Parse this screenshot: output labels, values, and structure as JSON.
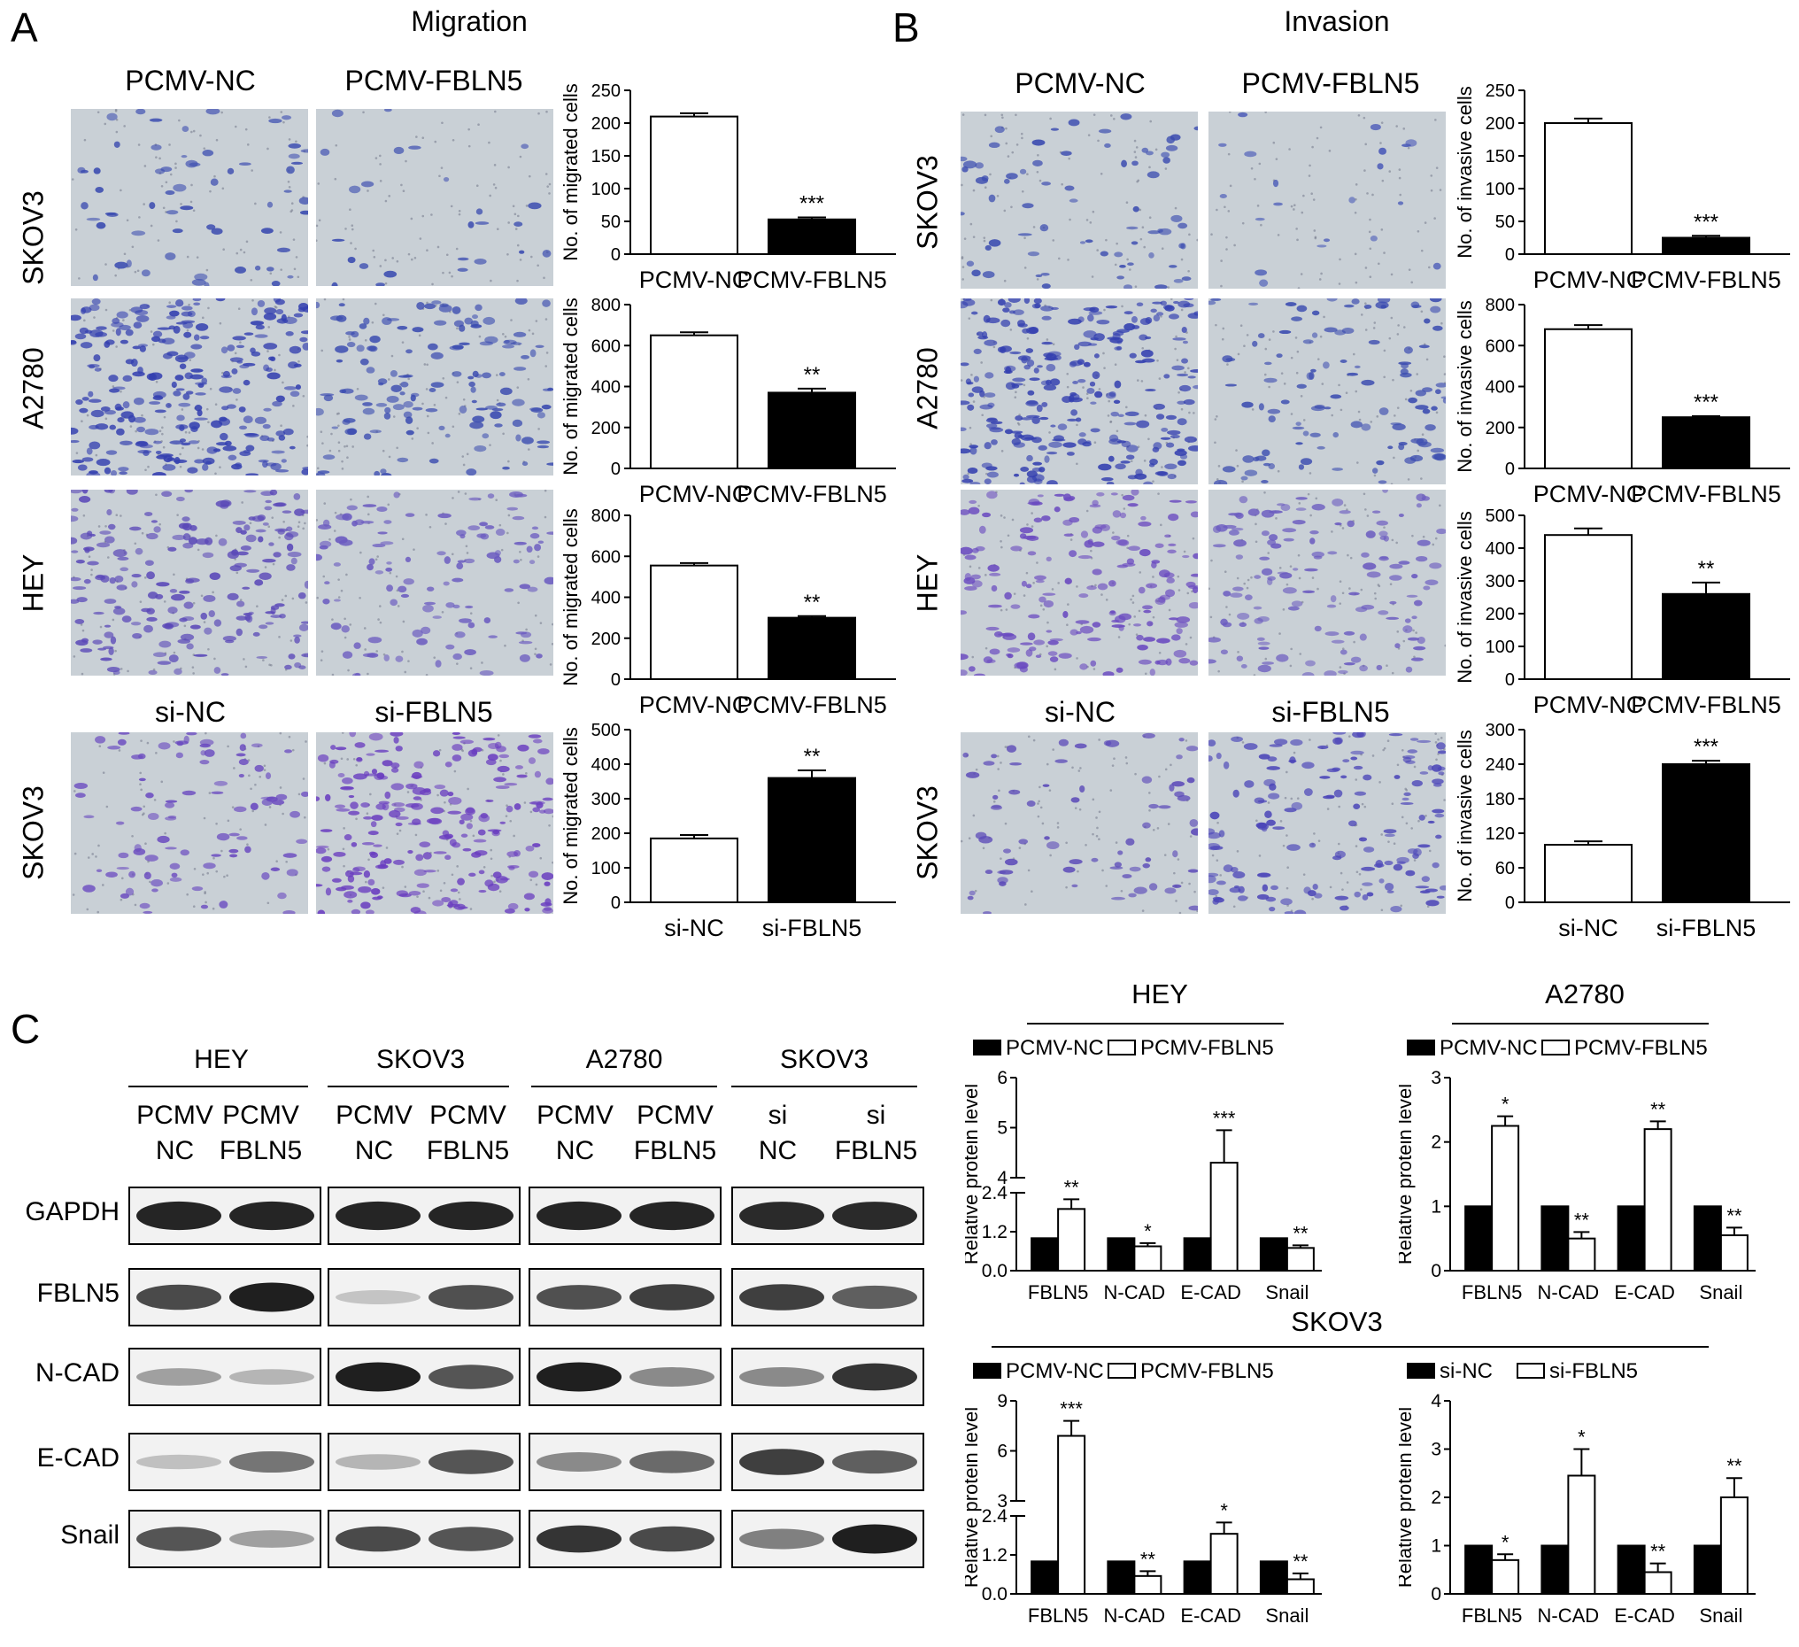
{
  "labels": {
    "panel_a": "A",
    "panel_b": "B",
    "panel_c": "C",
    "migration": "Migration",
    "invasion": "Invasion",
    "pcmv_nc": "PCMV-NC",
    "pcmv_fbln5": "PCMV-FBLN5",
    "si_nc": "si-NC",
    "si_fbln5": "si-FBLN5",
    "skov3": "SKOV3",
    "a2780": "A2780",
    "hey": "HEY"
  },
  "blot": {
    "groups": [
      "HEY",
      "SKOV3",
      "A2780",
      "SKOV3"
    ],
    "lanes": [
      {
        "top": "PCMV",
        "bottom": "NC"
      },
      {
        "top": "PCMV",
        "bottom": "FBLN5"
      },
      {
        "top": "PCMV",
        "bottom": "NC"
      },
      {
        "top": "PCMV",
        "bottom": "FBLN5"
      },
      {
        "top": "PCMV",
        "bottom": "NC"
      },
      {
        "top": "PCMV",
        "bottom": "FBLN5"
      },
      {
        "top": "si",
        "bottom": "NC"
      },
      {
        "top": "si",
        "bottom": "FBLN5"
      }
    ],
    "proteins": [
      "GAPDH",
      "FBLN5",
      "N-CAD",
      "E-CAD",
      "Snail"
    ],
    "intensity": [
      [
        0.92,
        0.92,
        0.92,
        0.92,
        0.92,
        0.92,
        0.9,
        0.9
      ],
      [
        0.75,
        0.95,
        0.18,
        0.72,
        0.72,
        0.8,
        0.8,
        0.65
      ],
      [
        0.35,
        0.25,
        0.95,
        0.7,
        0.95,
        0.45,
        0.45,
        0.85
      ],
      [
        0.2,
        0.55,
        0.25,
        0.7,
        0.45,
        0.6,
        0.8,
        0.65
      ],
      [
        0.7,
        0.35,
        0.75,
        0.7,
        0.85,
        0.75,
        0.5,
        0.95
      ]
    ]
  },
  "chart_data": [
    {
      "type": "bar",
      "id": "mig_skov3",
      "categories": [
        "PCMV-NC",
        "PCMV-FBLN5"
      ],
      "values": [
        210,
        53
      ],
      "errors": [
        5,
        3
      ],
      "fills": [
        "#ffffff",
        "#000000"
      ],
      "ylabel": "No. of migrated cells",
      "ylim": [
        0,
        250
      ],
      "yticks": [
        "0",
        "50",
        "100",
        "150",
        "200",
        "250"
      ],
      "signif": [
        "",
        "***"
      ]
    },
    {
      "type": "bar",
      "id": "mig_a2780",
      "categories": [
        "PCMV-NC",
        "PCMV-FBLN5"
      ],
      "values": [
        650,
        370
      ],
      "errors": [
        15,
        20
      ],
      "fills": [
        "#ffffff",
        "#000000"
      ],
      "ylabel": "No. of migrated cells",
      "ylim": [
        0,
        800
      ],
      "yticks": [
        "0",
        "200",
        "400",
        "600",
        "800"
      ],
      "signif": [
        "",
        "**"
      ]
    },
    {
      "type": "bar",
      "id": "mig_hey",
      "categories": [
        "PCMV-NC",
        "PCMV-FBLN5"
      ],
      "values": [
        555,
        300
      ],
      "errors": [
        12,
        8
      ],
      "fills": [
        "#ffffff",
        "#000000"
      ],
      "ylabel": "No. of migrated cells",
      "ylim": [
        0,
        800
      ],
      "yticks": [
        "0",
        "200",
        "400",
        "600",
        "800"
      ],
      "signif": [
        "",
        "**"
      ]
    },
    {
      "type": "bar",
      "id": "mig_skov3_si",
      "categories": [
        "si-NC",
        "si-FBLN5"
      ],
      "values": [
        185,
        360
      ],
      "errors": [
        10,
        22
      ],
      "fills": [
        "#ffffff",
        "#000000"
      ],
      "ylabel": "No. of migrated cells",
      "ylim": [
        0,
        500
      ],
      "yticks": [
        "0",
        "100",
        "200",
        "300",
        "400",
        "500"
      ],
      "signif": [
        "",
        "**"
      ]
    },
    {
      "type": "bar",
      "id": "inv_skov3",
      "categories": [
        "PCMV-NC",
        "PCMV-FBLN5"
      ],
      "values": [
        200,
        25
      ],
      "errors": [
        7,
        3
      ],
      "fills": [
        "#ffffff",
        "#000000"
      ],
      "ylabel": "No. of invasive cells",
      "ylim": [
        0,
        250
      ],
      "yticks": [
        "0",
        "50",
        "100",
        "150",
        "200",
        "250"
      ],
      "signif": [
        "",
        "***"
      ]
    },
    {
      "type": "bar",
      "id": "inv_a2780",
      "categories": [
        "PCMV-NC",
        "PCMV-FBLN5"
      ],
      "values": [
        680,
        250
      ],
      "errors": [
        20,
        5
      ],
      "fills": [
        "#ffffff",
        "#000000"
      ],
      "ylabel": "No. of invasive cells",
      "ylim": [
        0,
        800
      ],
      "yticks": [
        "0",
        "200",
        "400",
        "600",
        "800"
      ],
      "signif": [
        "",
        "***"
      ]
    },
    {
      "type": "bar",
      "id": "inv_hey",
      "categories": [
        "PCMV-NC",
        "PCMV-FBLN5"
      ],
      "values": [
        440,
        260
      ],
      "errors": [
        20,
        35
      ],
      "fills": [
        "#ffffff",
        "#000000"
      ],
      "ylabel": "No. of invasive cells",
      "ylim": [
        0,
        500
      ],
      "yticks": [
        "0",
        "100",
        "200",
        "300",
        "400",
        "500"
      ],
      "signif": [
        "",
        "**"
      ]
    },
    {
      "type": "bar",
      "id": "inv_skov3_si",
      "categories": [
        "si-NC",
        "si-FBLN5"
      ],
      "values": [
        100,
        240
      ],
      "errors": [
        6,
        6
      ],
      "fills": [
        "#ffffff",
        "#000000"
      ],
      "ylabel": "No. of invasive cells",
      "ylim": [
        0,
        300
      ],
      "yticks": [
        "0",
        "60",
        "120",
        "180",
        "240",
        "300"
      ],
      "signif": [
        "",
        "***"
      ]
    },
    {
      "type": "bar",
      "id": "prot_hey",
      "title": "HEY",
      "categories": [
        "FBLN5",
        "N-CAD",
        "E-CAD",
        "Snail"
      ],
      "series": [
        {
          "name": "PCMV-NC",
          "values": [
            1,
            1,
            1,
            1
          ],
          "errors": [
            0,
            0,
            0,
            0
          ],
          "fill": "#000000"
        },
        {
          "name": "PCMV-FBLN5",
          "values": [
            1.9,
            0.75,
            4.3,
            0.7
          ],
          "errors": [
            0.3,
            0.1,
            0.65,
            0.08
          ],
          "fill": "#ffffff"
        }
      ],
      "ylabel": "Relative protein level",
      "broken_axis": {
        "lower": [
          0,
          2.4
        ],
        "upper": [
          4,
          6
        ]
      },
      "yticks_lower": [
        "0.0",
        "1.2",
        "2.4"
      ],
      "yticks_upper": [
        "4",
        "5",
        "6"
      ],
      "signif": [
        "**",
        "*",
        "***",
        "**"
      ]
    },
    {
      "type": "bar",
      "id": "prot_a2780",
      "title": "A2780",
      "categories": [
        "FBLN5",
        "N-CAD",
        "E-CAD",
        "Snail"
      ],
      "series": [
        {
          "name": "PCMV-NC",
          "values": [
            1,
            1,
            1,
            1
          ],
          "errors": [
            0,
            0,
            0,
            0
          ],
          "fill": "#000000"
        },
        {
          "name": "PCMV-FBLN5",
          "values": [
            2.25,
            0.5,
            2.2,
            0.55
          ],
          "errors": [
            0.15,
            0.1,
            0.12,
            0.12
          ],
          "fill": "#ffffff"
        }
      ],
      "ylabel": "Relative protein level",
      "ylim": [
        0,
        3
      ],
      "yticks": [
        "0",
        "1",
        "2",
        "3"
      ],
      "signif": [
        "*",
        "**",
        "**",
        "**"
      ]
    },
    {
      "type": "bar",
      "id": "prot_skov3_pcmv",
      "title": "SKOV3",
      "categories": [
        "FBLN5",
        "N-CAD",
        "E-CAD",
        "Snail"
      ],
      "series": [
        {
          "name": "PCMV-NC",
          "values": [
            1,
            1,
            1,
            1
          ],
          "errors": [
            0,
            0,
            0,
            0
          ],
          "fill": "#000000"
        },
        {
          "name": "PCMV-FBLN5",
          "values": [
            6.9,
            0.55,
            1.85,
            0.45
          ],
          "errors": [
            0.9,
            0.15,
            0.35,
            0.18
          ],
          "fill": "#ffffff"
        }
      ],
      "ylabel": "Relative protein level",
      "broken_axis": {
        "lower": [
          0,
          2.4
        ],
        "upper": [
          3,
          9
        ]
      },
      "yticks_lower": [
        "0.0",
        "1.2",
        "2.4"
      ],
      "yticks_upper": [
        "3",
        "6",
        "9"
      ],
      "signif": [
        "***",
        "**",
        "*",
        "**"
      ]
    },
    {
      "type": "bar",
      "id": "prot_skov3_si",
      "categories": [
        "FBLN5",
        "N-CAD",
        "E-CAD",
        "Snail"
      ],
      "series": [
        {
          "name": "si-NC",
          "values": [
            1,
            1,
            1,
            1
          ],
          "errors": [
            0,
            0,
            0,
            0
          ],
          "fill": "#000000"
        },
        {
          "name": "si-FBLN5",
          "values": [
            0.7,
            2.45,
            0.45,
            2.0
          ],
          "errors": [
            0.12,
            0.55,
            0.18,
            0.4
          ],
          "fill": "#ffffff"
        }
      ],
      "ylabel": "Relative protein level",
      "ylim": [
        0,
        4
      ],
      "yticks": [
        "0",
        "1",
        "2",
        "3",
        "4"
      ],
      "signif": [
        "*",
        "*",
        "**",
        "**"
      ]
    }
  ]
}
